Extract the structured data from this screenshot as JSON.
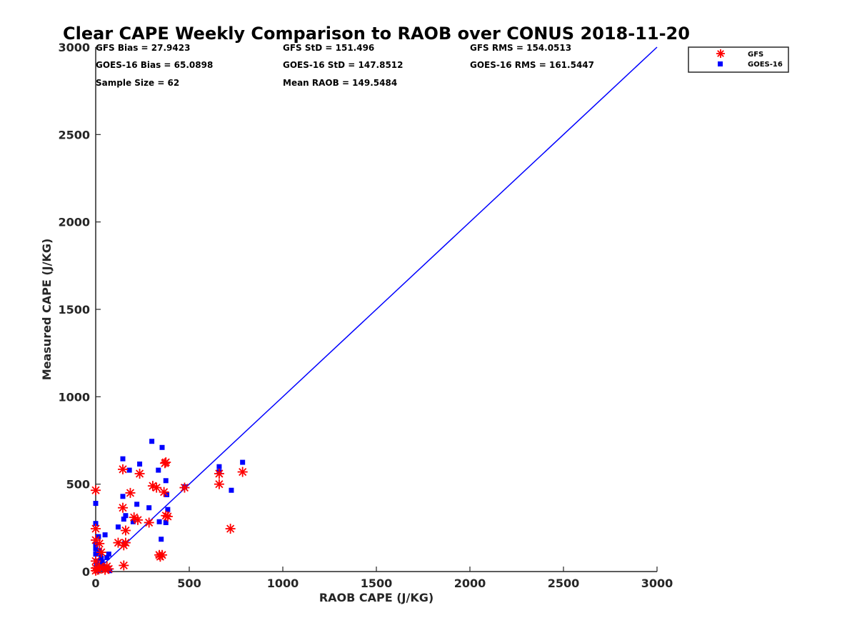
{
  "chart_data": {
    "type": "scatter",
    "title": "Clear CAPE Weekly Comparison to RAOB over CONUS 2018-11-20",
    "xlabel": "RAOB CAPE (J/KG)",
    "ylabel": "Measured CAPE (J/KG)",
    "xlim": [
      0,
      3000
    ],
    "ylim": [
      0,
      3000
    ],
    "xticks": [
      "0",
      "500",
      "1000",
      "1500",
      "2000",
      "2500",
      "3000"
    ],
    "yticks": [
      "0",
      "500",
      "1000",
      "1500",
      "2000",
      "2500",
      "3000"
    ],
    "grid": false,
    "legend_position": "top-right",
    "stats": [
      [
        "GFS Bias = 27.9423",
        "GFS StD = 151.496",
        "GFS RMS = 154.0513"
      ],
      [
        "GOES-16 Bias = 65.0898",
        "GOES-16 StD = 147.8512",
        "GOES-16 RMS = 161.5447"
      ],
      [
        "Sample Size = 62",
        "Mean RAOB = 149.5484",
        ""
      ]
    ],
    "reference_line": {
      "x": [
        0,
        3000
      ],
      "y": [
        0,
        3000
      ],
      "color": "#0000ff"
    },
    "series": [
      {
        "name": "GFS",
        "marker": "asterisk",
        "color": "#ff0000",
        "points": [
          [
            0,
            465
          ],
          [
            0,
            245
          ],
          [
            0,
            180
          ],
          [
            0,
            60
          ],
          [
            0,
            20
          ],
          [
            0,
            5
          ],
          [
            10,
            10
          ],
          [
            20,
            160
          ],
          [
            20,
            25
          ],
          [
            30,
            110
          ],
          [
            40,
            20
          ],
          [
            50,
            10
          ],
          [
            60,
            30
          ],
          [
            70,
            15
          ],
          [
            120,
            165
          ],
          [
            145,
            585
          ],
          [
            145,
            365
          ],
          [
            150,
            150
          ],
          [
            150,
            35
          ],
          [
            160,
            165
          ],
          [
            160,
            235
          ],
          [
            185,
            450
          ],
          [
            205,
            310
          ],
          [
            225,
            295
          ],
          [
            235,
            560
          ],
          [
            285,
            280
          ],
          [
            305,
            490
          ],
          [
            325,
            480
          ],
          [
            340,
            95
          ],
          [
            345,
            85
          ],
          [
            355,
            95
          ],
          [
            365,
            455
          ],
          [
            370,
            620
          ],
          [
            375,
            625
          ],
          [
            375,
            320
          ],
          [
            385,
            315
          ],
          [
            475,
            480
          ],
          [
            660,
            560
          ],
          [
            660,
            500
          ],
          [
            720,
            245
          ],
          [
            785,
            570
          ]
        ]
      },
      {
        "name": "GOES-16",
        "marker": "square",
        "color": "#0000ff",
        "points": [
          [
            0,
            390
          ],
          [
            0,
            275
          ],
          [
            0,
            155
          ],
          [
            0,
            130
          ],
          [
            0,
            100
          ],
          [
            5,
            60
          ],
          [
            5,
            40
          ],
          [
            10,
            5
          ],
          [
            15,
            200
          ],
          [
            20,
            120
          ],
          [
            25,
            100
          ],
          [
            30,
            75
          ],
          [
            35,
            55
          ],
          [
            40,
            30
          ],
          [
            45,
            15
          ],
          [
            50,
            210
          ],
          [
            60,
            80
          ],
          [
            65,
            20
          ],
          [
            70,
            100
          ],
          [
            75,
            5
          ],
          [
            120,
            255
          ],
          [
            145,
            645
          ],
          [
            145,
            430
          ],
          [
            150,
            300
          ],
          [
            160,
            320
          ],
          [
            155,
            160
          ],
          [
            180,
            580
          ],
          [
            200,
            285
          ],
          [
            220,
            385
          ],
          [
            235,
            615
          ],
          [
            285,
            365
          ],
          [
            300,
            745
          ],
          [
            335,
            580
          ],
          [
            340,
            285
          ],
          [
            350,
            185
          ],
          [
            355,
            710
          ],
          [
            375,
            280
          ],
          [
            375,
            520
          ],
          [
            380,
            440
          ],
          [
            385,
            355
          ],
          [
            475,
            485
          ],
          [
            660,
            600
          ],
          [
            660,
            570
          ],
          [
            725,
            465
          ],
          [
            785,
            625
          ]
        ]
      }
    ]
  }
}
